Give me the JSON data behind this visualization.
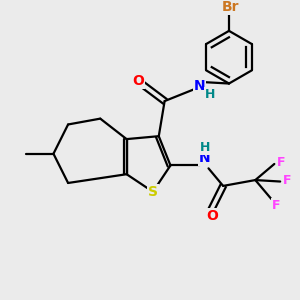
{
  "background_color": "#ebebeb",
  "bond_color": "#000000",
  "bond_width": 1.6,
  "atom_colors": {
    "O": "#ff0000",
    "N": "#0000ff",
    "S": "#cccc00",
    "F": "#ff44ff",
    "Br": "#cc7722",
    "H": "#008888",
    "C": "#000000"
  },
  "font_size": 9,
  "figure_size": [
    3.0,
    3.0
  ],
  "dpi": 100
}
